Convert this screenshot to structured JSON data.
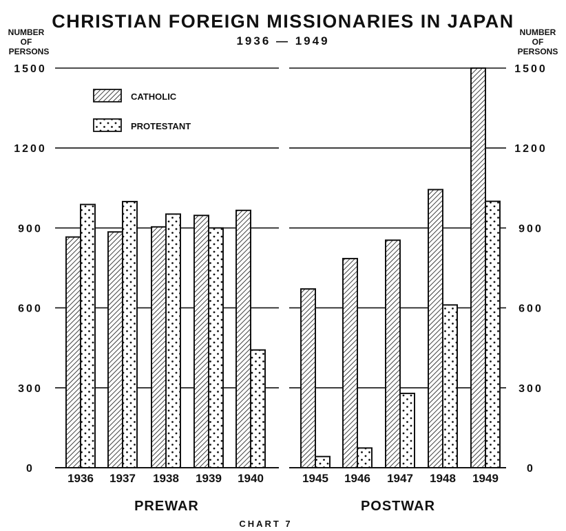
{
  "chart_data": {
    "type": "bar",
    "title": "CHRISTIAN FOREIGN MISSIONARIES IN JAPAN",
    "subtitle": "1936 — 1949",
    "ylabel_left": [
      "NUMBER",
      "OF",
      "PERSONS"
    ],
    "ylabel_right": [
      "NUMBER",
      "OF",
      "PERSONS"
    ],
    "ylim": [
      0,
      1500
    ],
    "yticks": [
      0,
      300,
      600,
      900,
      1200,
      1500
    ],
    "grid": true,
    "legend_position": "top-left",
    "series": [
      {
        "name": "CATHOLIC",
        "pattern": "diagonal-hatch"
      },
      {
        "name": "PROTESTANT",
        "pattern": "dots"
      }
    ],
    "panels": [
      {
        "label": "PREWAR",
        "categories": [
          "1936",
          "1937",
          "1938",
          "1939",
          "1940"
        ],
        "catholic": [
          866,
          885,
          904,
          947,
          966
        ],
        "protestant": [
          988,
          999,
          952,
          900,
          442
        ]
      },
      {
        "label": "POSTWAR",
        "categories": [
          "1945",
          "1946",
          "1947",
          "1948",
          "1949"
        ],
        "catholic": [
          671,
          785,
          854,
          1044,
          1500
        ],
        "protestant": [
          42,
          74,
          279,
          611,
          1000
        ]
      }
    ],
    "caption": "CHART 7"
  }
}
